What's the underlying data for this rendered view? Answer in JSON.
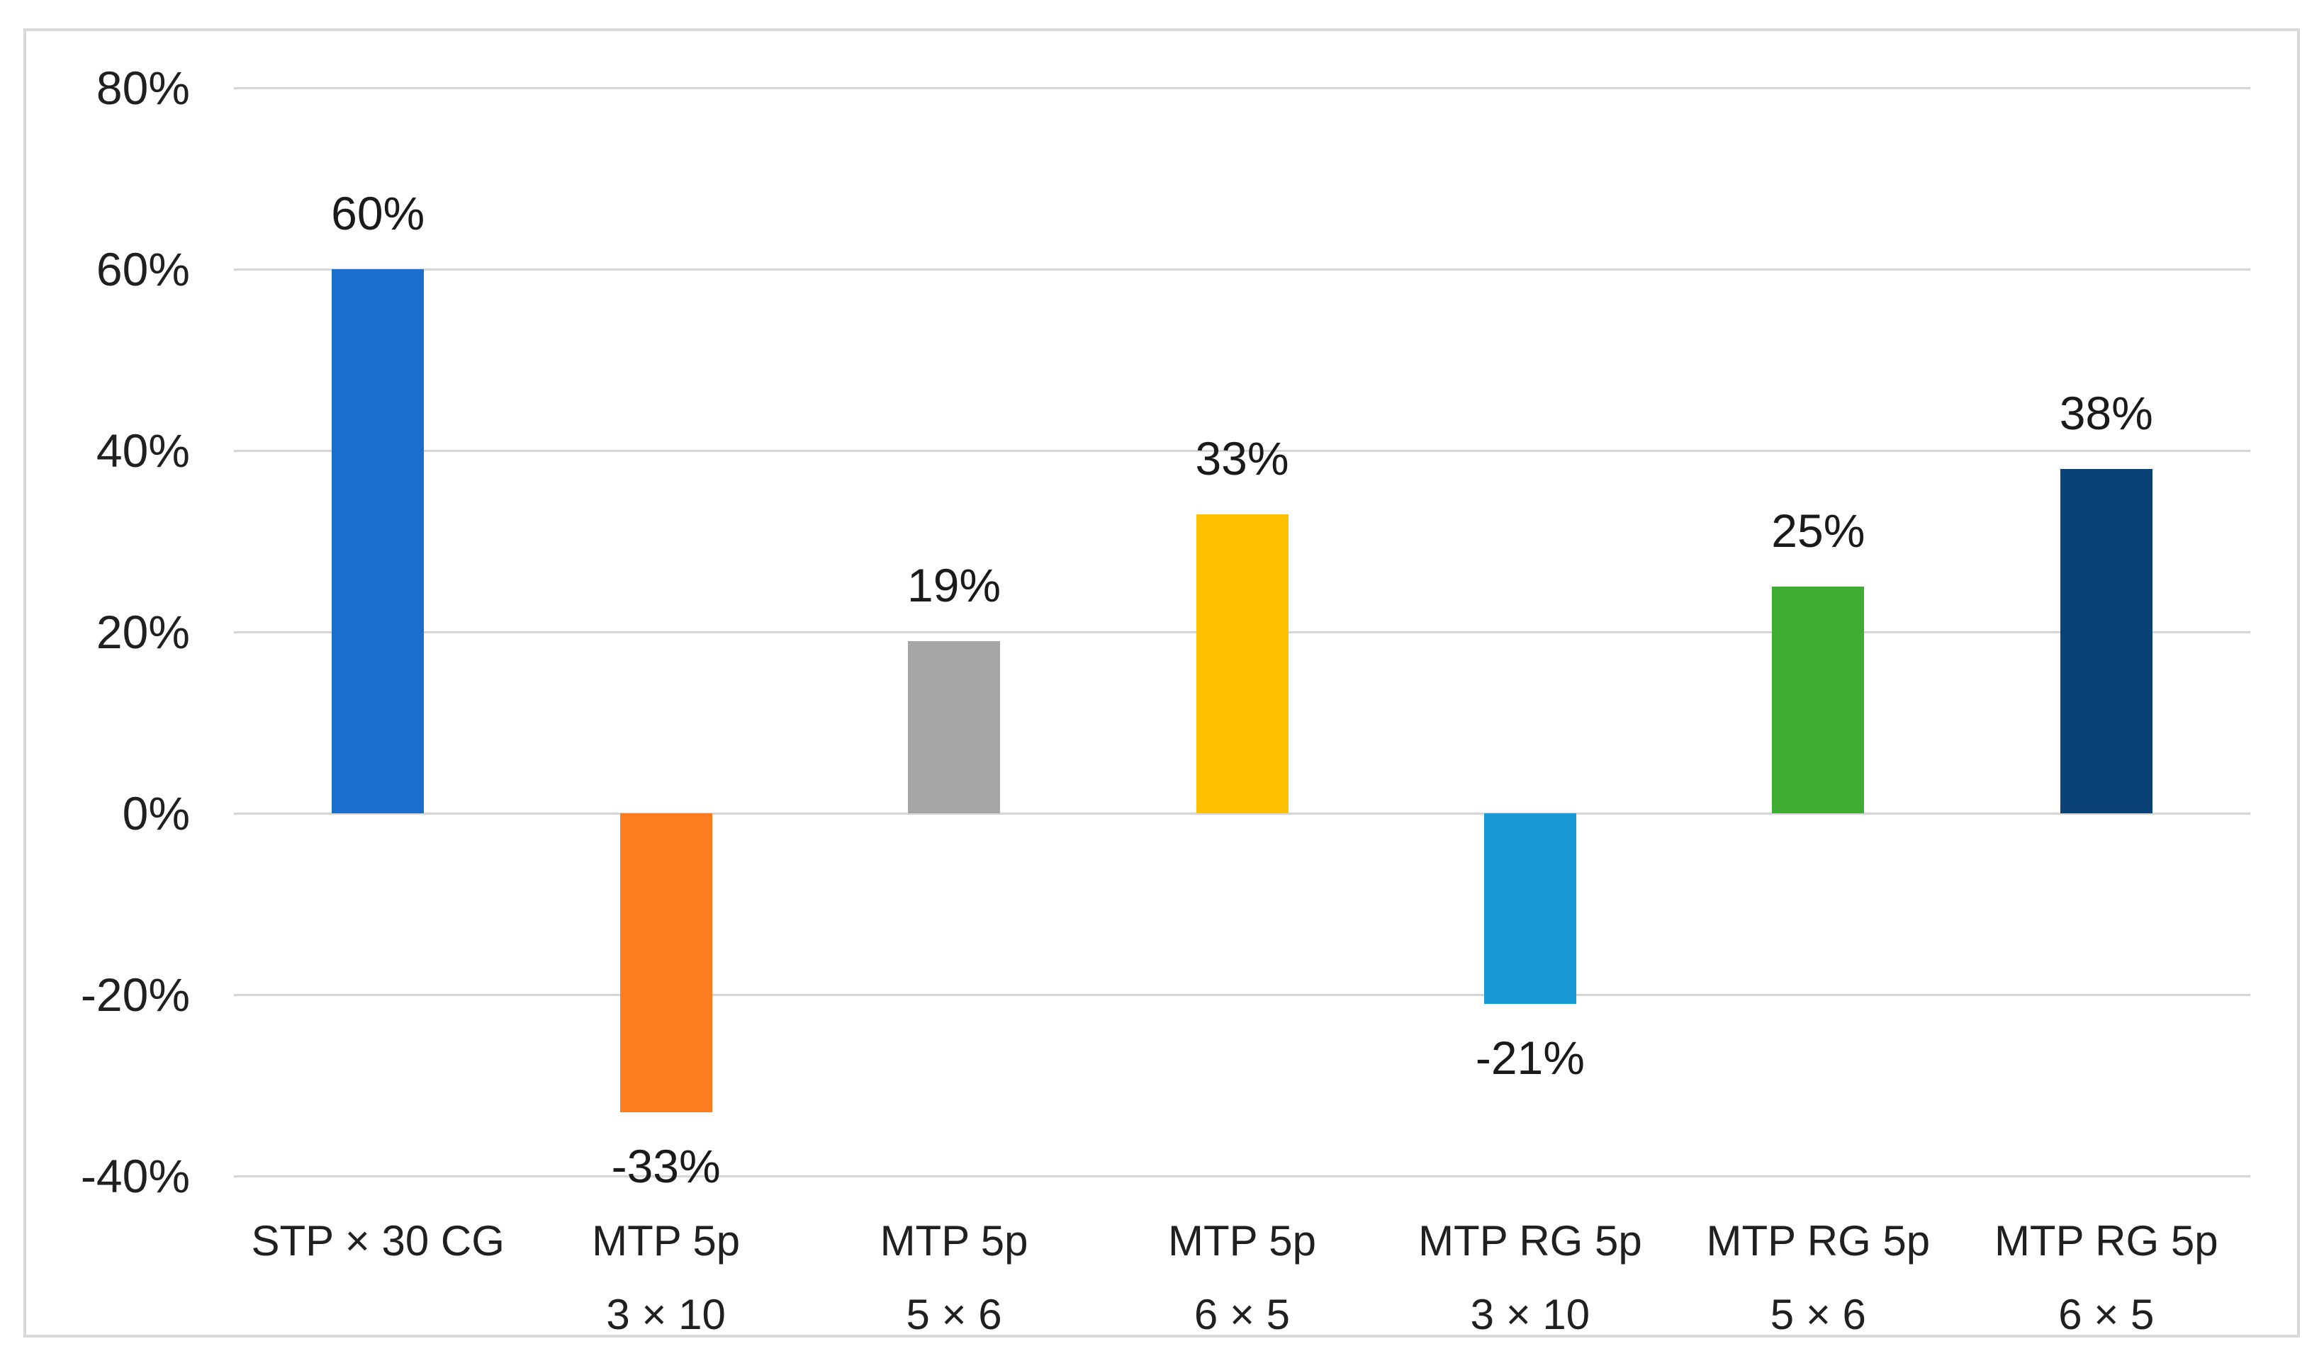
{
  "chart_data": {
    "type": "bar",
    "title": "",
    "legend_position": "none",
    "grid": true,
    "categories": [
      [
        "STP × 30 CG"
      ],
      [
        "MTP 5p",
        "3 × 10"
      ],
      [
        "MTP 5p",
        "5 × 6"
      ],
      [
        "MTP 5p",
        "6 × 5"
      ],
      [
        "MTP RG 5p",
        "3 × 10"
      ],
      [
        "MTP RG 5p",
        "5 × 6"
      ],
      [
        "MTP RG 5p",
        "6 × 5"
      ]
    ],
    "values": [
      60,
      -33,
      19,
      33,
      -21,
      25,
      38
    ],
    "data_labels": [
      "60%",
      "-33%",
      "19%",
      "33%",
      "-21%",
      "25%",
      "38%"
    ],
    "bar_colors": [
      "#1B6ECC",
      "#FB7D20",
      "#A6A6A6",
      "#FFC000",
      "#199AD6",
      "#3FAC33",
      "#0A4278"
    ],
    "ylim": [
      -40,
      80
    ],
    "ytick_step": 20,
    "ytick_labels": [
      "80%",
      "60%",
      "40%",
      "20%",
      "0%",
      "-20%",
      "-40%"
    ],
    "xlabel": "",
    "ylabel": "",
    "colors": {
      "gridline": "#D6D6D6",
      "frame_border": "#D8D8D8",
      "axis_text": "#202020",
      "data_label_text": "#1A1A1A",
      "background": "#FFFFFF"
    }
  }
}
